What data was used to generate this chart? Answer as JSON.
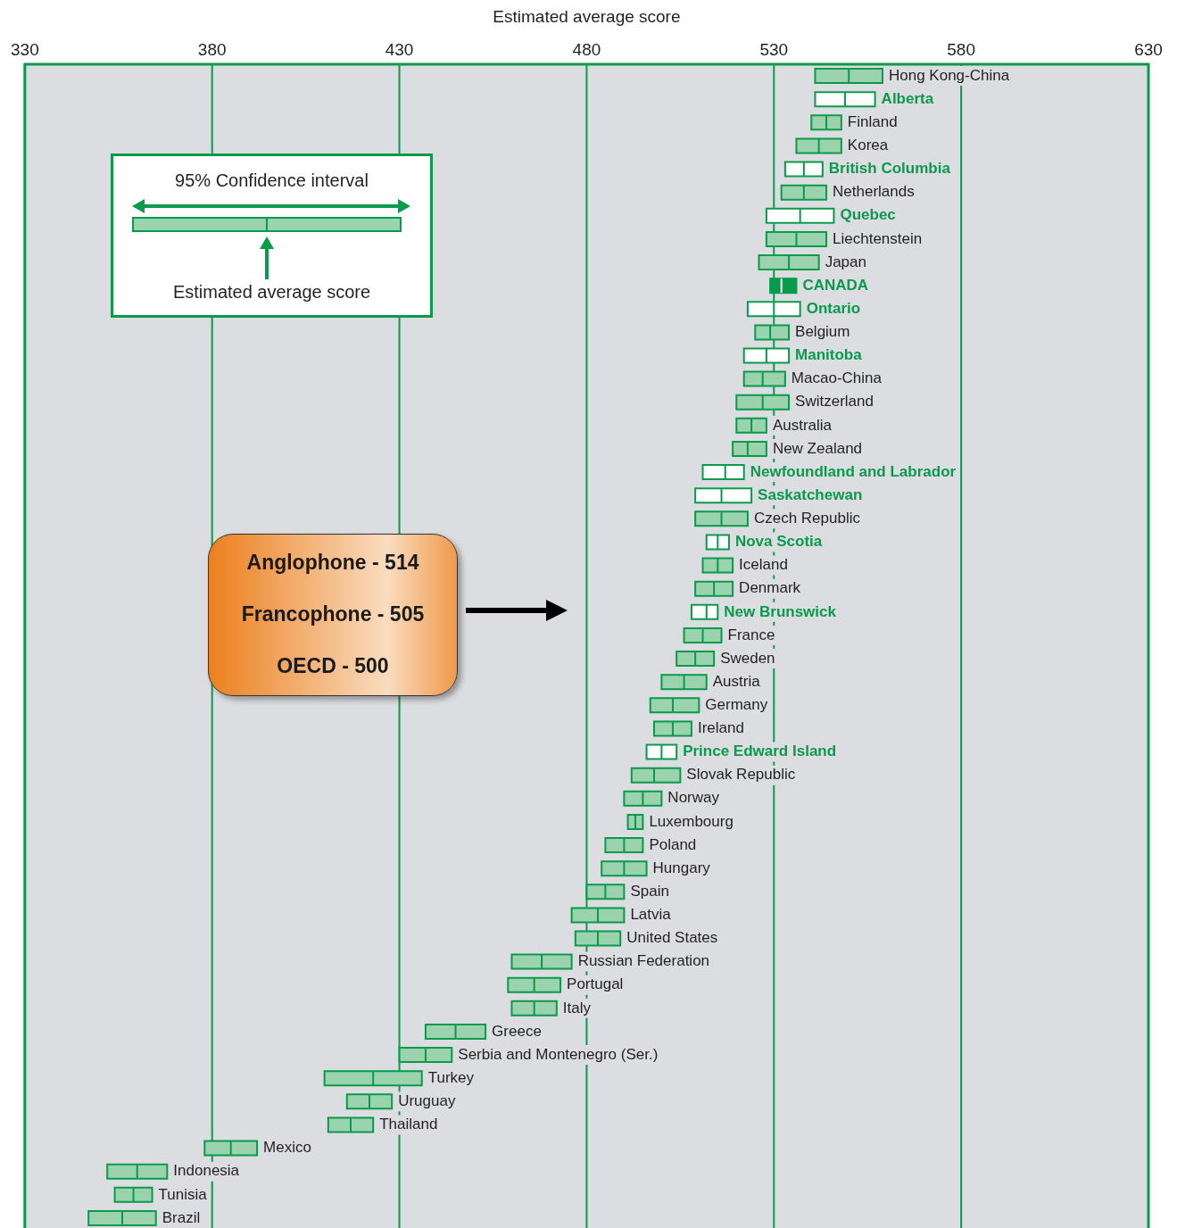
{
  "chart_data": {
    "type": "box",
    "orientation": "horizontal",
    "xlabel": "Estimated average score",
    "categories": [
      "Hong Kong-China",
      "Alberta",
      "Finland",
      "Korea",
      "British Columbia",
      "Netherlands",
      "Quebec",
      "Liechtenstein",
      "Japan",
      "CANADA",
      "Ontario",
      "Belgium",
      "Manitoba",
      "Macao-China",
      "Switzerland",
      "Australia",
      "New Zealand",
      "Newfoundland and Labrador",
      "Saskatchewan",
      "Czech Republic",
      "Nova Scotia",
      "Iceland",
      "Denmark",
      "New Brunswick",
      "France",
      "Sweden",
      "Austria",
      "Germany",
      "Ireland",
      "Prince Edward Island",
      "Slovak Republic",
      "Norway",
      "Luxembourg",
      "Poland",
      "Hungary",
      "Spain",
      "Latvia",
      "United States",
      "Russian Federation",
      "Portugal",
      "Italy",
      "Greece",
      "Serbia and Montenegro (Ser.)",
      "Turkey",
      "Uruguay",
      "Thailand",
      "Mexico",
      "Indonesia",
      "Tunisia",
      "Brazil"
    ],
    "boxes": [
      {
        "low": 541,
        "q1": 541,
        "median": 550,
        "q3": 559,
        "high": 559
      },
      {
        "low": 541,
        "q1": 541,
        "median": 549,
        "q3": 557,
        "high": 557
      },
      {
        "low": 540,
        "q1": 540,
        "median": 544,
        "q3": 548,
        "high": 548
      },
      {
        "low": 536,
        "q1": 536,
        "median": 542,
        "q3": 548,
        "high": 548
      },
      {
        "low": 533,
        "q1": 533,
        "median": 538,
        "q3": 543,
        "high": 543
      },
      {
        "low": 532,
        "q1": 532,
        "median": 538,
        "q3": 544,
        "high": 544
      },
      {
        "low": 528,
        "q1": 528,
        "median": 537,
        "q3": 546,
        "high": 546
      },
      {
        "low": 528,
        "q1": 528,
        "median": 536,
        "q3": 544,
        "high": 544
      },
      {
        "low": 526,
        "q1": 526,
        "median": 534,
        "q3": 542,
        "high": 542
      },
      {
        "low": 529,
        "q1": 529,
        "median": 532,
        "q3": 536,
        "high": 536
      },
      {
        "low": 523,
        "q1": 523,
        "median": 530,
        "q3": 537,
        "high": 537
      },
      {
        "low": 525,
        "q1": 525,
        "median": 529,
        "q3": 534,
        "high": 534
      },
      {
        "low": 522,
        "q1": 522,
        "median": 528,
        "q3": 534,
        "high": 534
      },
      {
        "low": 522,
        "q1": 522,
        "median": 527,
        "q3": 533,
        "high": 533
      },
      {
        "low": 520,
        "q1": 520,
        "median": 527,
        "q3": 534,
        "high": 534
      },
      {
        "low": 520,
        "q1": 520,
        "median": 524,
        "q3": 528,
        "high": 528
      },
      {
        "low": 519,
        "q1": 519,
        "median": 523,
        "q3": 528,
        "high": 528
      },
      {
        "low": 511,
        "q1": 511,
        "median": 517,
        "q3": 522,
        "high": 522
      },
      {
        "low": 509,
        "q1": 509,
        "median": 516,
        "q3": 524,
        "high": 524
      },
      {
        "low": 509,
        "q1": 509,
        "median": 516,
        "q3": 523,
        "high": 523
      },
      {
        "low": 512,
        "q1": 512,
        "median": 515,
        "q3": 518,
        "high": 518
      },
      {
        "low": 511,
        "q1": 511,
        "median": 515,
        "q3": 519,
        "high": 519
      },
      {
        "low": 509,
        "q1": 509,
        "median": 514,
        "q3": 519,
        "high": 519
      },
      {
        "low": 508,
        "q1": 508,
        "median": 512,
        "q3": 515,
        "high": 515
      },
      {
        "low": 506,
        "q1": 506,
        "median": 511,
        "q3": 516,
        "high": 516
      },
      {
        "low": 504,
        "q1": 504,
        "median": 509,
        "q3": 514,
        "high": 514
      },
      {
        "low": 500,
        "q1": 500,
        "median": 506,
        "q3": 512,
        "high": 512
      },
      {
        "low": 497,
        "q1": 497,
        "median": 503,
        "q3": 510,
        "high": 510
      },
      {
        "low": 498,
        "q1": 498,
        "median": 503,
        "q3": 508,
        "high": 508
      },
      {
        "low": 496,
        "q1": 496,
        "median": 500,
        "q3": 504,
        "high": 504
      },
      {
        "low": 492,
        "q1": 492,
        "median": 498,
        "q3": 505,
        "high": 505
      },
      {
        "low": 490,
        "q1": 490,
        "median": 495,
        "q3": 500,
        "high": 500
      },
      {
        "low": 491,
        "q1": 491,
        "median": 493,
        "q3": 495,
        "high": 495
      },
      {
        "low": 485,
        "q1": 485,
        "median": 490,
        "q3": 495,
        "high": 495
      },
      {
        "low": 484,
        "q1": 484,
        "median": 490,
        "q3": 496,
        "high": 496
      },
      {
        "low": 480,
        "q1": 480,
        "median": 485,
        "q3": 490,
        "high": 490
      },
      {
        "low": 476,
        "q1": 476,
        "median": 483,
        "q3": 490,
        "high": 490
      },
      {
        "low": 477,
        "q1": 477,
        "median": 483,
        "q3": 489,
        "high": 489
      },
      {
        "low": 460,
        "q1": 460,
        "median": 468,
        "q3": 476,
        "high": 476
      },
      {
        "low": 459,
        "q1": 459,
        "median": 466,
        "q3": 473,
        "high": 473
      },
      {
        "low": 460,
        "q1": 460,
        "median": 466,
        "q3": 472,
        "high": 472
      },
      {
        "low": 437,
        "q1": 437,
        "median": 445,
        "q3": 453,
        "high": 453
      },
      {
        "low": 430,
        "q1": 430,
        "median": 437,
        "q3": 444,
        "high": 444
      },
      {
        "low": 410,
        "q1": 410,
        "median": 423,
        "q3": 436,
        "high": 436
      },
      {
        "low": 416,
        "q1": 416,
        "median": 422,
        "q3": 428,
        "high": 428
      },
      {
        "low": 411,
        "q1": 411,
        "median": 417,
        "q3": 423,
        "high": 423
      },
      {
        "low": 378,
        "q1": 378,
        "median": 385,
        "q3": 392,
        "high": 392
      },
      {
        "low": 352,
        "q1": 352,
        "median": 360,
        "q3": 368,
        "high": 368
      },
      {
        "low": 354,
        "q1": 354,
        "median": 359,
        "q3": 364,
        "high": 364
      },
      {
        "low": 347,
        "q1": 347,
        "median": 356,
        "q3": 365,
        "high": 365
      }
    ],
    "colors": [
      "#9bd3af",
      "#ffffff",
      "#9bd3af",
      "#9bd3af",
      "#ffffff",
      "#9bd3af",
      "#ffffff",
      "#9bd3af",
      "#9bd3af",
      "#0a9a4c",
      "#ffffff",
      "#9bd3af",
      "#ffffff",
      "#9bd3af",
      "#9bd3af",
      "#9bd3af",
      "#9bd3af",
      "#ffffff",
      "#ffffff",
      "#9bd3af",
      "#ffffff",
      "#9bd3af",
      "#9bd3af",
      "#ffffff",
      "#9bd3af",
      "#9bd3af",
      "#9bd3af",
      "#9bd3af",
      "#9bd3af",
      "#ffffff",
      "#9bd3af",
      "#9bd3af",
      "#9bd3af",
      "#9bd3af",
      "#9bd3af",
      "#9bd3af",
      "#9bd3af",
      "#9bd3af",
      "#9bd3af",
      "#9bd3af",
      "#9bd3af",
      "#9bd3af",
      "#9bd3af",
      "#9bd3af",
      "#9bd3af",
      "#9bd3af",
      "#9bd3af",
      "#9bd3af",
      "#9bd3af",
      "#9bd3af"
    ],
    "xlim": [
      330,
      630
    ],
    "xticks": [
      330,
      380,
      430,
      480,
      530,
      580,
      630
    ],
    "grid": "x",
    "legend": false,
    "annotations": [
      "95% Confidence interval",
      "Estimated average score",
      "Anglophone - 514",
      "Francophone - 505",
      "OECD - 500"
    ]
  }
}
